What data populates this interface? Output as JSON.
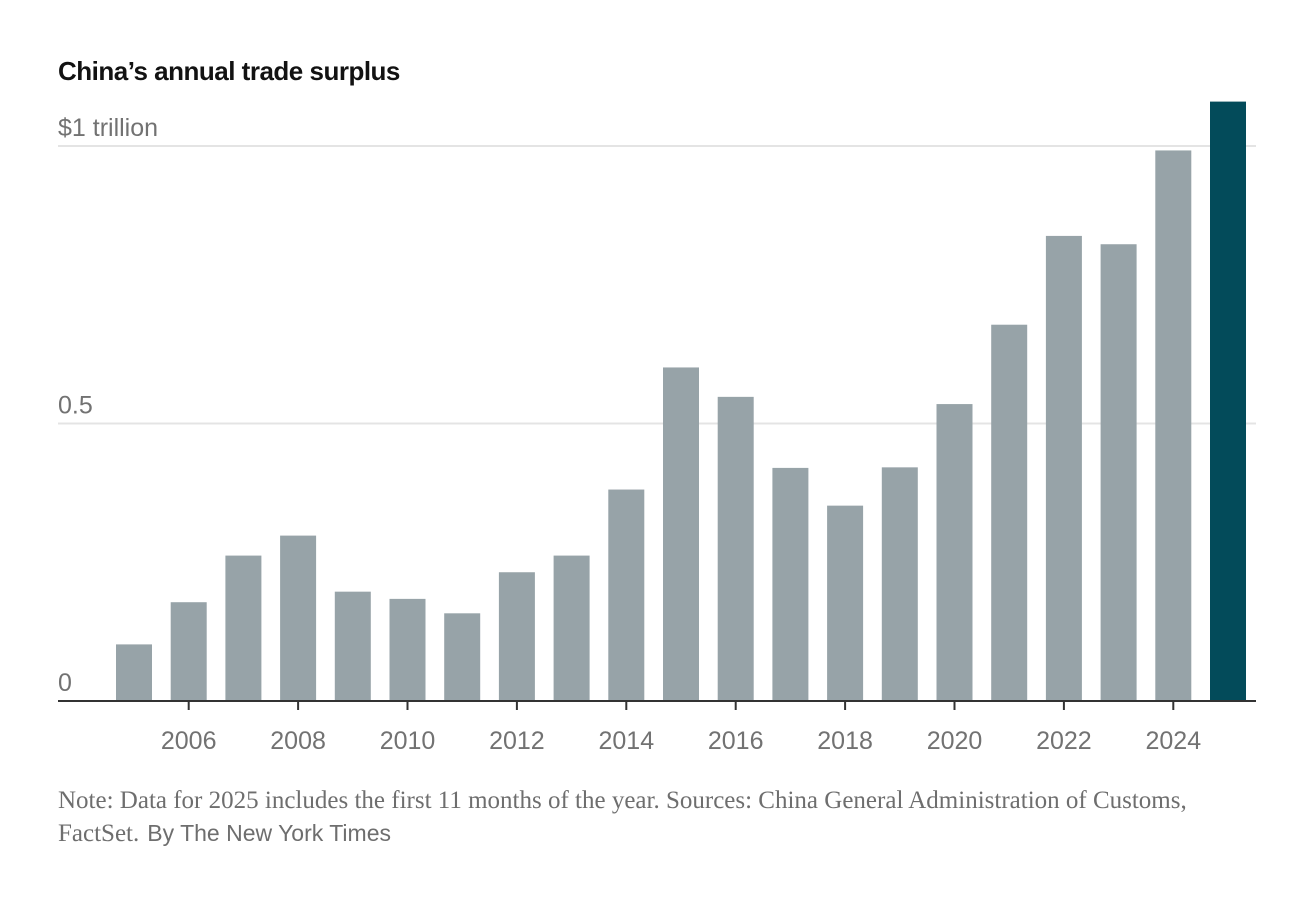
{
  "chart_data": {
    "type": "bar",
    "title": "China’s annual trade surplus",
    "xlabel": "",
    "ylabel": "",
    "unit_label": "$1 trillion",
    "categories": [
      2005,
      2006,
      2007,
      2008,
      2009,
      2010,
      2011,
      2012,
      2013,
      2014,
      2015,
      2016,
      2017,
      2018,
      2019,
      2020,
      2021,
      2022,
      2023,
      2024,
      2025
    ],
    "values": [
      0.102,
      0.178,
      0.262,
      0.298,
      0.197,
      0.184,
      0.158,
      0.232,
      0.262,
      0.381,
      0.601,
      0.548,
      0.42,
      0.352,
      0.421,
      0.535,
      0.678,
      0.838,
      0.823,
      0.992,
      1.08
    ],
    "highlight_category": 2025,
    "colors": {
      "bar": "#97a3a8",
      "highlight": "#034b5a",
      "grid": "#e4e4e4",
      "baseline": "#333333"
    },
    "ylim": [
      0,
      1.0
    ],
    "yticks": [
      {
        "value": 0,
        "label": "0"
      },
      {
        "value": 0.5,
        "label": "0.5"
      },
      {
        "value": 1.0,
        "label": "$1 trillion"
      }
    ],
    "xticks": [
      {
        "value": 2006,
        "label": "2006"
      },
      {
        "value": 2008,
        "label": "2008"
      },
      {
        "value": 2010,
        "label": "2010"
      },
      {
        "value": 2012,
        "label": "2012"
      },
      {
        "value": 2014,
        "label": "2014"
      },
      {
        "value": 2016,
        "label": "2016"
      },
      {
        "value": 2018,
        "label": "2018"
      },
      {
        "value": 2020,
        "label": "2020"
      },
      {
        "value": 2022,
        "label": "2022"
      },
      {
        "value": 2024,
        "label": "2024"
      }
    ],
    "grid": true
  },
  "footer": {
    "note": "Note: Data for 2025 includes the first 11 months of the year.  Sources: China General Administration of Customs, FactSet.",
    "credit": "By The New York Times"
  }
}
